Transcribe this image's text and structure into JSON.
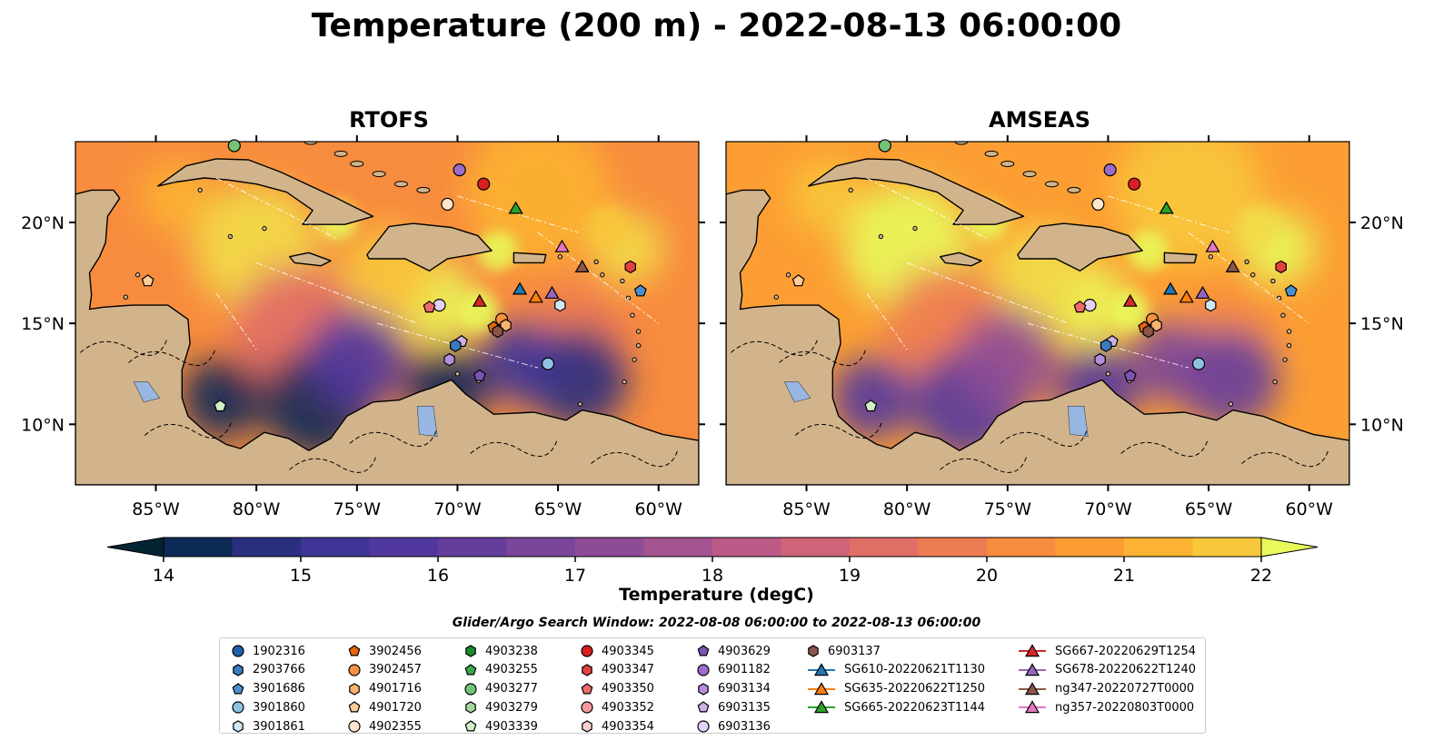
{
  "title": "Temperature (200 m) - 2022-08-13 06:00:00",
  "panels": [
    {
      "title": "RTOFS",
      "variant": "rtofs"
    },
    {
      "title": "AMSEAS",
      "variant": "amseas"
    }
  ],
  "map": {
    "lon_range": [
      -89,
      -58
    ],
    "lat_range": [
      7,
      24
    ],
    "lon_ticks": [
      "85°W",
      "80°W",
      "75°W",
      "70°W",
      "65°W",
      "60°W"
    ],
    "lon_tick_values": [
      -85,
      -80,
      -75,
      -70,
      -65,
      -60
    ],
    "lat_ticks": [
      "20°N",
      "15°N",
      "10°N"
    ],
    "lat_tick_values": [
      20,
      15,
      10
    ],
    "colors": {
      "land": "#d2b48c",
      "ocean": "#97b6e1"
    }
  },
  "colorbar": {
    "label": "Temperature (degC)",
    "min": 14,
    "max": 22,
    "tick_labels": [
      "14",
      "15",
      "16",
      "17",
      "18",
      "19",
      "20",
      "21",
      "22"
    ],
    "tick_values": [
      14,
      15,
      16,
      17,
      18,
      19,
      20,
      21,
      22
    ],
    "colormap": "thermal",
    "colors": [
      "#042333",
      "#0d2a56",
      "#2a2f80",
      "#3e3597",
      "#51389e",
      "#643e9d",
      "#7a459a",
      "#8f4c96",
      "#a55290",
      "#bb5a86",
      "#cf6377",
      "#e16e66",
      "#ee7c52",
      "#f88c3e",
      "#fc9e33",
      "#fcb232",
      "#f8c73a",
      "#f2dc48",
      "#e8fa5b"
    ]
  },
  "search_window": "Glider/Argo Search Window: 2022-08-08 06:00:00 to 2022-08-13 06:00:00",
  "legend": [
    {
      "label": "1902316",
      "marker": "circle",
      "color": "#1f5fa8"
    },
    {
      "label": "2903766",
      "marker": "hexagon",
      "color": "#3a7bbf"
    },
    {
      "label": "3901686",
      "marker": "pentagon",
      "color": "#4a90d0"
    },
    {
      "label": "3901860",
      "marker": "circle",
      "color": "#8fc1e3"
    },
    {
      "label": "3901861",
      "marker": "hexagon",
      "color": "#cfe6f5"
    },
    {
      "label": "3902456",
      "marker": "pentagon",
      "color": "#e8650c"
    },
    {
      "label": "3902457",
      "marker": "circle",
      "color": "#f99040"
    },
    {
      "label": "4901716",
      "marker": "hexagon",
      "color": "#fbb16f"
    },
    {
      "label": "4901720",
      "marker": "pentagon",
      "color": "#fdcc98"
    },
    {
      "label": "4902355",
      "marker": "circle",
      "color": "#fee6cc"
    },
    {
      "label": "4903238",
      "marker": "hexagon",
      "color": "#1a8a2a"
    },
    {
      "label": "4903255",
      "marker": "pentagon",
      "color": "#3aa84a"
    },
    {
      "label": "4903277",
      "marker": "circle",
      "color": "#74c476"
    },
    {
      "label": "4903279",
      "marker": "hexagon",
      "color": "#a1d99b"
    },
    {
      "label": "4903339",
      "marker": "pentagon",
      "color": "#d2f0c8"
    },
    {
      "label": "4903345",
      "marker": "circle",
      "color": "#d62020"
    },
    {
      "label": "4903347",
      "marker": "hexagon",
      "color": "#e34040"
    },
    {
      "label": "4903350",
      "marker": "pentagon",
      "color": "#ef6a6a"
    },
    {
      "label": "4903352",
      "marker": "circle",
      "color": "#f49a9a"
    },
    {
      "label": "4903354",
      "marker": "hexagon",
      "color": "#fbcdcd"
    },
    {
      "label": "4903629",
      "marker": "pentagon",
      "color": "#7b55b3"
    },
    {
      "label": "6901182",
      "marker": "circle",
      "color": "#9b6ccc"
    },
    {
      "label": "6903134",
      "marker": "hexagon",
      "color": "#b48ddd"
    },
    {
      "label": "6903135",
      "marker": "pentagon",
      "color": "#ceb2ec"
    },
    {
      "label": "6903136",
      "marker": "circle",
      "color": "#e2d2f6"
    },
    {
      "label": "6903137",
      "marker": "hexagon",
      "color": "#8c564b"
    },
    {
      "label": "SG610-20220621T1130",
      "marker": "triangle-line",
      "color": "#1f77b4"
    },
    {
      "label": "SG635-20220622T1250",
      "marker": "triangle-line",
      "color": "#ff7f0e"
    },
    {
      "label": "SG665-20220623T1144",
      "marker": "triangle-line",
      "color": "#2ca02c"
    },
    {
      "label": "SG667-20220629T1254",
      "marker": "triangle-line",
      "color": "#d62728"
    },
    {
      "label": "SG678-20220622T1240",
      "marker": "triangle-line",
      "color": "#9467bd"
    },
    {
      "label": "ng347-20220727T0000",
      "marker": "triangle-line",
      "color": "#8c564b"
    },
    {
      "label": "ng357-20220803T0000",
      "marker": "triangle-line",
      "color": "#e377c2"
    }
  ],
  "observations": [
    {
      "id": "3901686",
      "lon": -60.9,
      "lat": 16.6
    },
    {
      "id": "3901860",
      "lon": -65.5,
      "lat": 13.0
    },
    {
      "id": "3901861",
      "lon": -64.9,
      "lat": 15.9
    },
    {
      "id": "3902456",
      "lon": -68.2,
      "lat": 14.8
    },
    {
      "id": "3902457",
      "lon": -67.8,
      "lat": 15.2
    },
    {
      "id": "4901716",
      "lon": -67.6,
      "lat": 14.9
    },
    {
      "id": "4901720",
      "lon": -85.4,
      "lat": 17.1
    },
    {
      "id": "4902355",
      "lon": -70.5,
      "lat": 20.9
    },
    {
      "id": "4903277",
      "lon": -81.1,
      "lat": 23.8
    },
    {
      "id": "4903345",
      "lon": -68.7,
      "lat": 21.9
    },
    {
      "id": "4903347",
      "lon": -61.4,
      "lat": 17.8
    },
    {
      "id": "6901182",
      "lon": -69.9,
      "lat": 22.6
    },
    {
      "id": "6903134",
      "lon": -70.4,
      "lat": 13.2
    },
    {
      "id": "6903135",
      "lon": -69.8,
      "lat": 14.1
    },
    {
      "id": "6903136",
      "lon": -70.9,
      "lat": 15.9
    },
    {
      "id": "6903137",
      "lon": -68.0,
      "lat": 14.6
    },
    {
      "id": "2903766",
      "lon": -70.1,
      "lat": 13.9
    },
    {
      "id": "4903629",
      "lon": -68.9,
      "lat": 12.4
    },
    {
      "id": "4903339",
      "lon": -81.8,
      "lat": 10.9
    },
    {
      "id": "4903350",
      "lon": -71.4,
      "lat": 15.8
    },
    {
      "id": "SG610-20220621T1130",
      "lon": -66.9,
      "lat": 16.7
    },
    {
      "id": "SG635-20220622T1250",
      "lon": -66.1,
      "lat": 16.3
    },
    {
      "id": "SG665-20220623T1144",
      "lon": -67.1,
      "lat": 20.7
    },
    {
      "id": "SG667-20220629T1254",
      "lon": -68.9,
      "lat": 16.1
    },
    {
      "id": "SG678-20220622T1240",
      "lon": -65.3,
      "lat": 16.5
    },
    {
      "id": "ng347-20220727T0000",
      "lon": -63.8,
      "lat": 17.8
    },
    {
      "id": "ng357-20220803T0000",
      "lon": -64.8,
      "lat": 18.8
    }
  ]
}
